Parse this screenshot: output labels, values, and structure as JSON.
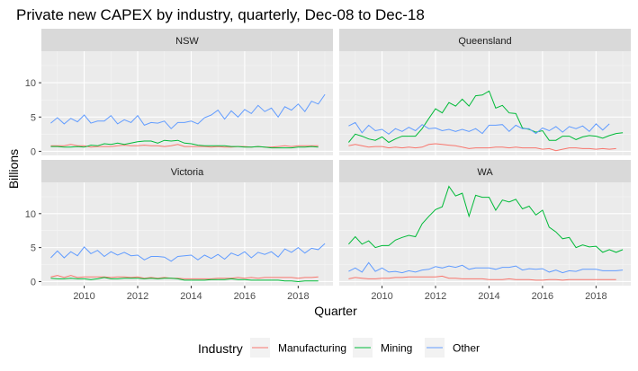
{
  "chart_data": {
    "type": "line",
    "title": "Private new CAPEX by industry, quarterly, Dec-08 to Dec-18",
    "xlabel": "Quarter",
    "ylabel": "Billions",
    "x_ticks": [
      "2010",
      "2012",
      "2014",
      "2016",
      "2018"
    ],
    "x_tick_values": [
      2010,
      2012,
      2014,
      2016,
      2018
    ],
    "y_ticks": [
      "0",
      "5",
      "10"
    ],
    "y_tick_values": [
      0,
      5,
      10
    ],
    "xlim": [
      2008.4,
      2019.3
    ],
    "ylim": [
      -0.6,
      14.6
    ],
    "x_start": 2008.75,
    "x_step": 0.25,
    "grid": true,
    "legend": {
      "title": "Industry",
      "position": "bottom",
      "entries": [
        "Manufacturing",
        "Mining",
        "Other"
      ]
    },
    "colors": {
      "Manufacturing": "#F8766D",
      "Mining": "#00BA38",
      "Other": "#619CFF"
    },
    "panels": [
      {
        "name": "NSW",
        "series": [
          {
            "name": "Manufacturing",
            "values": [
              0.8,
              0.8,
              0.8,
              1.0,
              0.8,
              0.8,
              0.6,
              0.7,
              0.7,
              0.7,
              0.8,
              0.9,
              0.8,
              0.8,
              0.9,
              0.8,
              0.8,
              0.7,
              0.8,
              1.0,
              0.7,
              0.7,
              0.7,
              0.7,
              0.6,
              0.7,
              0.6,
              0.6,
              0.7,
              0.7,
              0.6,
              0.7,
              0.6,
              0.6,
              0.7,
              0.8,
              0.7,
              0.8,
              0.8,
              0.8,
              0.8
            ]
          },
          {
            "name": "Mining",
            "values": [
              0.7,
              0.7,
              0.6,
              0.6,
              0.7,
              0.6,
              0.9,
              0.8,
              1.1,
              1.0,
              1.2,
              1.0,
              1.2,
              1.4,
              1.5,
              1.5,
              1.2,
              1.6,
              1.5,
              1.6,
              1.2,
              1.1,
              0.9,
              0.8,
              0.8,
              0.8,
              0.8,
              0.7,
              0.7,
              0.6,
              0.6,
              0.7,
              0.6,
              0.5,
              0.5,
              0.5,
              0.5,
              0.6,
              0.6,
              0.7,
              0.6
            ]
          },
          {
            "name": "Other",
            "values": [
              4.1,
              4.9,
              4.0,
              4.8,
              4.3,
              5.3,
              4.1,
              4.4,
              4.4,
              5.2,
              4.0,
              4.6,
              4.2,
              5.2,
              3.8,
              4.2,
              4.1,
              4.4,
              3.3,
              4.2,
              4.2,
              4.4,
              4.0,
              4.9,
              5.3,
              6.0,
              4.7,
              5.9,
              5.0,
              6.1,
              5.5,
              6.7,
              5.8,
              6.3,
              5.0,
              6.5,
              6.0,
              6.9,
              5.8,
              7.3,
              6.9,
              8.3
            ]
          }
        ]
      },
      {
        "name": "Queensland",
        "series": [
          {
            "name": "Manufacturing",
            "values": [
              0.8,
              1.0,
              0.8,
              0.6,
              0.7,
              0.7,
              0.5,
              0.6,
              0.5,
              0.6,
              0.5,
              0.6,
              1.0,
              1.1,
              1.0,
              0.9,
              0.8,
              0.6,
              0.4,
              0.5,
              0.5,
              0.5,
              0.6,
              0.6,
              0.5,
              0.6,
              0.5,
              0.5,
              0.5,
              0.3,
              0.4,
              0.1,
              0.3,
              0.5,
              0.5,
              0.4,
              0.4,
              0.3,
              0.4,
              0.3,
              0.4
            ]
          },
          {
            "name": "Mining",
            "values": [
              1.3,
              2.5,
              2.2,
              1.8,
              1.6,
              2.1,
              1.3,
              1.8,
              2.2,
              2.2,
              2.2,
              3.3,
              4.8,
              6.2,
              5.6,
              7.1,
              6.6,
              7.6,
              6.6,
              8.1,
              8.2,
              8.8,
              6.3,
              6.7,
              5.6,
              5.5,
              3.4,
              3.2,
              2.8,
              3.0,
              1.6,
              1.6,
              2.2,
              2.2,
              1.7,
              2.1,
              2.3,
              2.2,
              1.9,
              2.3,
              2.6,
              2.7
            ]
          },
          {
            "name": "Other",
            "values": [
              3.7,
              4.2,
              2.7,
              3.8,
              3.0,
              3.2,
              2.5,
              3.3,
              2.9,
              3.5,
              3.0,
              3.9,
              3.3,
              3.4,
              3.0,
              3.2,
              2.9,
              3.2,
              2.9,
              3.3,
              2.6,
              3.8,
              3.8,
              3.9,
              2.9,
              3.8,
              3.3,
              3.3,
              2.6,
              3.4,
              3.0,
              3.6,
              2.8,
              3.6,
              3.3,
              3.7,
              2.9,
              4.0,
              3.1,
              4.0
            ]
          }
        ]
      },
      {
        "name": "Victoria",
        "series": [
          {
            "name": "Manufacturing",
            "values": [
              0.7,
              0.9,
              0.6,
              0.9,
              0.6,
              0.7,
              0.7,
              0.7,
              0.7,
              0.6,
              0.7,
              0.7,
              0.6,
              0.7,
              0.5,
              0.6,
              0.5,
              0.6,
              0.5,
              0.5,
              0.4,
              0.4,
              0.4,
              0.4,
              0.4,
              0.5,
              0.5,
              0.5,
              0.6,
              0.5,
              0.6,
              0.5,
              0.6,
              0.6,
              0.6,
              0.6,
              0.6,
              0.5,
              0.6,
              0.6,
              0.7
            ]
          },
          {
            "name": "Mining",
            "values": [
              0.5,
              0.4,
              0.4,
              0.5,
              0.4,
              0.4,
              0.3,
              0.4,
              0.6,
              0.4,
              0.4,
              0.5,
              0.5,
              0.5,
              0.4,
              0.5,
              0.4,
              0.5,
              0.5,
              0.4,
              0.2,
              0.2,
              0.2,
              0.2,
              0.3,
              0.3,
              0.3,
              0.4,
              0.3,
              0.3,
              0.2,
              0.2,
              0.2,
              0.2,
              0.2,
              0.1,
              0.1,
              0.0,
              0.1,
              0.1,
              0.1
            ]
          },
          {
            "name": "Other",
            "values": [
              3.5,
              4.5,
              3.5,
              4.4,
              3.8,
              5.1,
              4.1,
              4.6,
              3.7,
              4.4,
              3.9,
              4.3,
              3.8,
              3.9,
              3.2,
              3.7,
              3.7,
              3.6,
              3.0,
              3.7,
              3.8,
              3.9,
              3.2,
              3.9,
              3.4,
              4.0,
              3.3,
              4.2,
              3.8,
              4.4,
              3.5,
              4.3,
              4.0,
              4.4,
              3.6,
              4.8,
              4.3,
              5.0,
              4.2,
              4.9,
              4.7,
              5.6
            ]
          }
        ]
      },
      {
        "name": "WA",
        "series": [
          {
            "name": "Manufacturing",
            "values": [
              0.4,
              0.6,
              0.5,
              0.4,
              0.4,
              0.5,
              0.5,
              0.6,
              0.6,
              0.7,
              0.7,
              0.7,
              0.7,
              0.7,
              0.8,
              0.5,
              0.5,
              0.4,
              0.4,
              0.4,
              0.4,
              0.3,
              0.3,
              0.3,
              0.4,
              0.3,
              0.3,
              0.3,
              0.2,
              0.2,
              0.3,
              0.3,
              0.2,
              0.3,
              0.3,
              0.3,
              0.3,
              0.3,
              0.3,
              0.3,
              0.3
            ]
          },
          {
            "name": "Mining",
            "values": [
              5.5,
              6.6,
              5.5,
              6.0,
              5.0,
              5.3,
              5.3,
              6.1,
              6.5,
              6.8,
              6.6,
              8.5,
              9.6,
              10.6,
              11.0,
              14.0,
              12.6,
              13.0,
              9.6,
              12.7,
              12.4,
              12.4,
              10.5,
              12.0,
              11.7,
              12.1,
              10.7,
              11.1,
              9.8,
              10.5,
              8.0,
              7.3,
              6.3,
              6.5,
              5.0,
              5.4,
              5.1,
              5.2,
              4.3,
              4.7,
              4.3,
              4.7
            ]
          },
          {
            "name": "Other",
            "values": [
              1.5,
              2.0,
              1.4,
              2.8,
              1.5,
              2.0,
              1.4,
              1.5,
              1.3,
              1.6,
              1.4,
              1.7,
              1.8,
              2.2,
              2.0,
              2.3,
              2.1,
              2.4,
              1.8,
              2.0,
              2.0,
              2.0,
              1.8,
              2.1,
              2.1,
              2.3,
              1.7,
              1.9,
              1.8,
              1.9,
              1.4,
              1.7,
              1.3,
              1.6,
              1.5,
              1.8,
              1.8,
              1.8,
              1.6,
              1.6,
              1.6,
              1.7
            ]
          }
        ]
      }
    ]
  }
}
